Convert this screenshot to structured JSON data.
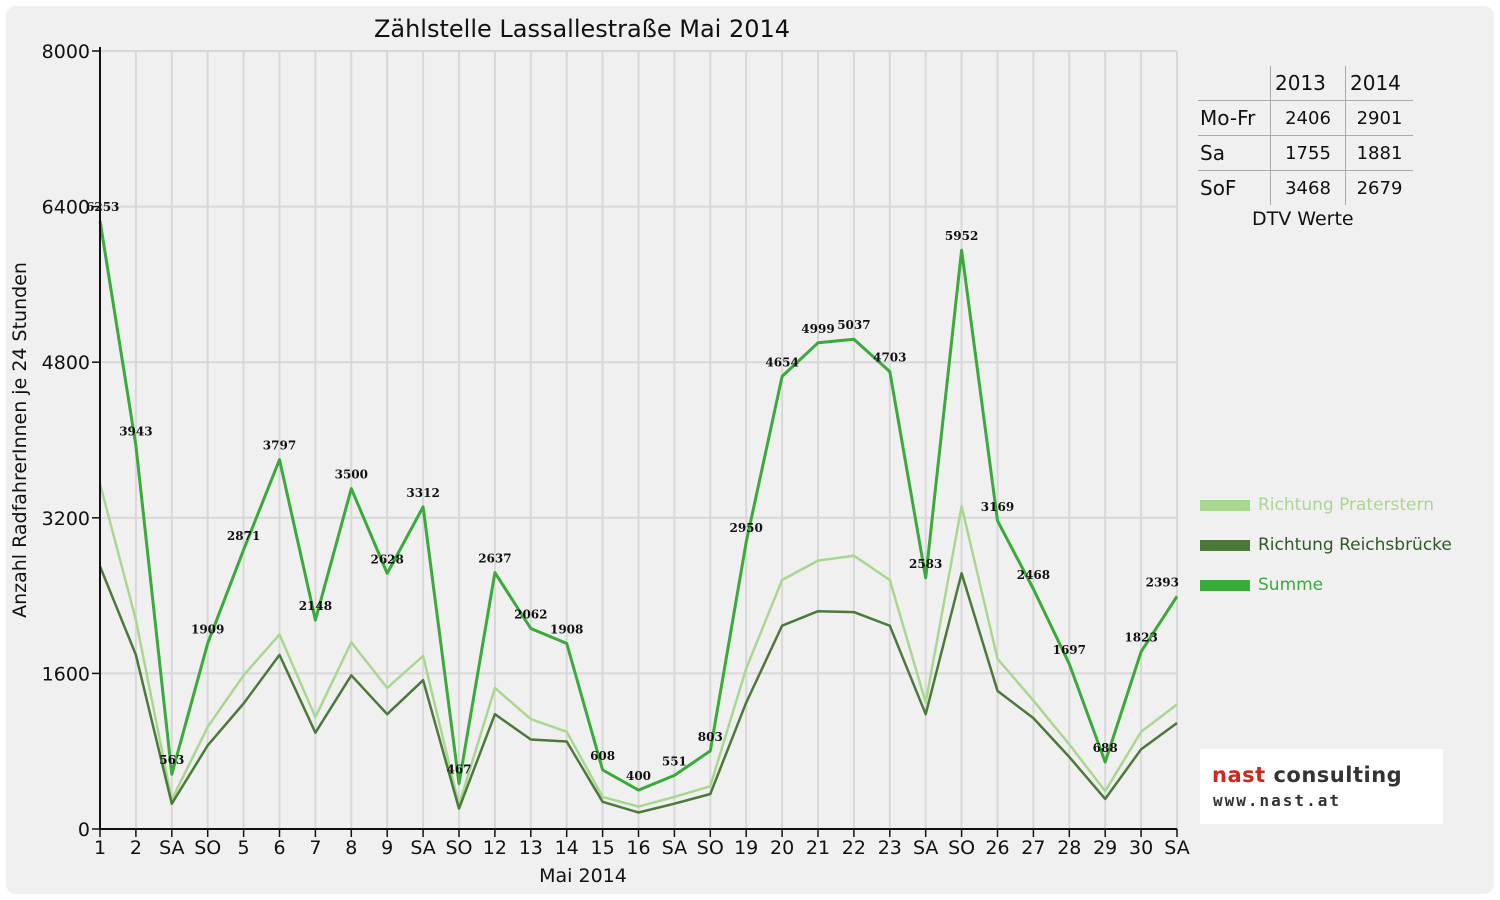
{
  "chart_data": {
    "type": "line",
    "title": "Zählstelle Lassallestraße Mai 2014",
    "xlabel": "Mai 2014",
    "ylabel": "Anzahl RadfahrerInnen je 24 Stunden",
    "ylim": [
      0,
      8000
    ],
    "yticks": [
      "0",
      "1600",
      "3200",
      "4800",
      "6400",
      "8000"
    ],
    "grid": true,
    "legend_position": "right",
    "categories": [
      "1",
      "2",
      "SA",
      "SO",
      "5",
      "6",
      "7",
      "8",
      "9",
      "SA",
      "SO",
      "12",
      "13",
      "14",
      "15",
      "16",
      "SA",
      "SO",
      "19",
      "20",
      "21",
      "22",
      "23",
      "SA",
      "SO",
      "26",
      "27",
      "28",
      "29",
      "30",
      "SA"
    ],
    "category_colors": [
      "#dd0000",
      "#111111",
      "#111111",
      "#dd0000",
      "#111111",
      "#111111",
      "#111111",
      "#111111",
      "#111111",
      "#111111",
      "#dd0000",
      "#111111",
      "#111111",
      "#111111",
      "#111111",
      "#111111",
      "#111111",
      "#dd0000",
      "#111111",
      "#111111",
      "#111111",
      "#111111",
      "#111111",
      "#111111",
      "#dd0000",
      "#111111",
      "#111111",
      "#111111",
      "#dd0000",
      "#111111",
      "#111111"
    ],
    "series": [
      {
        "name": "Richtung Praterstern",
        "color": "#a8d890",
        "width": 2.5,
        "values": [
          3550,
          2150,
          300,
          1050,
          1580,
          2000,
          1150,
          1920,
          1450,
          1780,
          250,
          1450,
          1130,
          1000,
          330,
          230,
          330,
          440,
          1650,
          2560,
          2760,
          2810,
          2560,
          1300,
          3320,
          1750,
          1320,
          870,
          390,
          1000,
          1280
        ]
      },
      {
        "name": "Richtung Reichsbrücke",
        "color": "#4a7a3a",
        "width": 2.5,
        "values": [
          2700,
          1790,
          260,
          860,
          1290,
          1790,
          990,
          1580,
          1180,
          1530,
          210,
          1180,
          920,
          900,
          280,
          170,
          260,
          360,
          1300,
          2090,
          2240,
          2230,
          2090,
          1180,
          2630,
          1420,
          1140,
          740,
          310,
          820,
          1090
        ]
      },
      {
        "name": "Summe",
        "color": "#3aaa3a",
        "width": 3,
        "values": [
          6253,
          3943,
          563,
          1909,
          2871,
          3797,
          2148,
          3500,
          2628,
          3312,
          467,
          2637,
          2062,
          1908,
          608,
          400,
          551,
          803,
          2950,
          4654,
          4999,
          5037,
          4703,
          2583,
          5952,
          3169,
          2468,
          1697,
          688,
          1823,
          2393
        ]
      }
    ],
    "data_labels": [
      "6253",
      "3943",
      "563",
      "1909",
      "2871",
      "3797",
      "2148",
      "3500",
      "2628",
      "3312",
      "467",
      "2637",
      "2062",
      "1908",
      "608",
      "400",
      "551",
      "803",
      "2950",
      "4654",
      "4999",
      "5037",
      "4703",
      "2583",
      "5952",
      "3169",
      "2468",
      "1697",
      "688",
      "1823",
      "2393"
    ]
  },
  "dtv_table": {
    "columns": [
      "2013",
      "2014"
    ],
    "rows": [
      {
        "label": "Mo-Fr",
        "v2013": "2406",
        "v2014": "2901"
      },
      {
        "label": "Sa",
        "v2013": "1755",
        "v2014": "1881"
      },
      {
        "label": "SoF",
        "v2013": "3468",
        "v2014": "2679"
      }
    ],
    "caption": "DTV Werte"
  },
  "logo": {
    "name_red": "nast",
    "name_dark": " consulting",
    "url": "www.nast.at"
  }
}
